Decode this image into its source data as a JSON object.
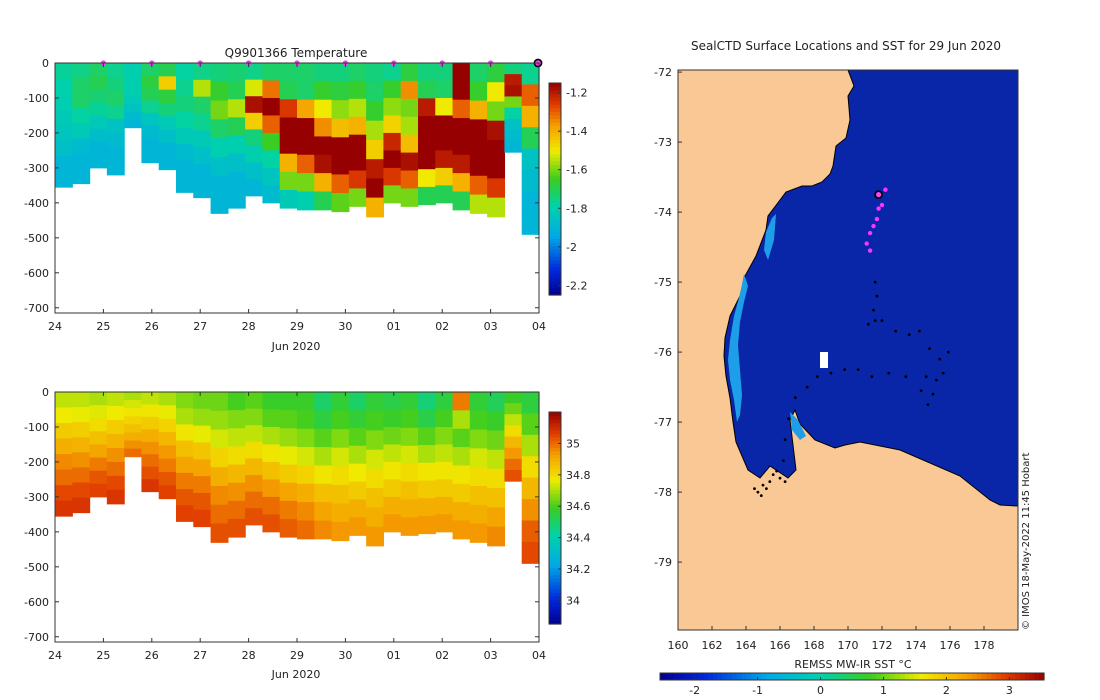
{
  "chart_data": [
    {
      "type": "heatmap",
      "title": "Q9901366  Temperature",
      "xlabel": "Jun 2020",
      "ylabel": "",
      "x_ticks": [
        "24",
        "25",
        "26",
        "27",
        "28",
        "29",
        "30",
        "01",
        "02",
        "03",
        "04"
      ],
      "y_ticks": [
        "0",
        "-100",
        "-200",
        "-300",
        "-400",
        "-500",
        "-600",
        "-700"
      ],
      "ylim": [
        -715,
        0
      ],
      "colorbar": {
        "ticks": [
          "-1.2",
          "-1.4",
          "-1.6",
          "-1.8",
          "-2",
          "-2.2"
        ],
        "range": [
          -2.25,
          -1.15
        ]
      },
      "profile_markers_day": [
        25,
        26,
        27,
        28,
        29,
        30,
        31,
        32,
        33
      ],
      "max_depth_m": [
        -355,
        -345,
        -300,
        -320,
        -185,
        -285,
        -305,
        -370,
        -385,
        -430,
        -415,
        -380,
        -400,
        -415,
        -420,
        -420,
        -425,
        -410,
        -440,
        -400,
        -410,
        -405,
        -400,
        -420,
        -430,
        -440,
        -255,
        -490
      ],
      "columns": [
        {
          "profile": [
            -1.77,
            -1.79,
            -1.8,
            -1.82,
            -1.84,
            -1.86,
            -1.9,
            -1.9
          ]
        },
        {
          "profile": [
            -1.75,
            -1.72,
            -1.72,
            -1.78,
            -1.82,
            -1.88,
            -1.9,
            -1.9
          ]
        },
        {
          "profile": [
            -1.72,
            -1.7,
            -1.73,
            -1.77,
            -1.82,
            -1.87,
            -1.9,
            -1.9
          ]
        },
        {
          "profile": [
            -1.76,
            -1.74,
            -1.72,
            -1.76,
            -1.85,
            -1.88,
            -1.9,
            -1.9
          ]
        },
        {
          "profile": [
            -1.8,
            -1.8,
            -1.8,
            -1.8,
            -1.82,
            -1.85,
            -1.88,
            -1.9
          ]
        },
        {
          "profile": [
            -1.72,
            -1.68,
            -1.7,
            -1.76,
            -1.84,
            -1.88,
            -1.9,
            -1.9
          ]
        },
        {
          "profile": [
            -1.7,
            -1.45,
            -1.68,
            -1.74,
            -1.82,
            -1.86,
            -1.9,
            -1.9
          ]
        },
        {
          "profile": [
            -1.78,
            -1.76,
            -1.74,
            -1.78,
            -1.82,
            -1.88,
            -1.9,
            -1.9
          ]
        },
        {
          "profile": [
            -1.75,
            -1.55,
            -1.72,
            -1.76,
            -1.82,
            -1.86,
            -1.9,
            -1.9
          ]
        },
        {
          "profile": [
            -1.74,
            -1.66,
            -1.6,
            -1.72,
            -1.8,
            -1.86,
            -1.9,
            -1.9
          ]
        },
        {
          "profile": [
            -1.73,
            -1.7,
            -1.55,
            -1.7,
            -1.8,
            -1.86,
            -1.9,
            -1.9
          ]
        },
        {
          "profile": [
            -1.75,
            -1.52,
            -1.18,
            -1.45,
            -1.74,
            -1.8,
            -1.86,
            -1.9
          ]
        },
        {
          "profile": [
            -1.72,
            -1.32,
            -1.15,
            -1.3,
            -1.65,
            -1.78,
            -1.84,
            -1.88
          ]
        },
        {
          "profile": [
            -1.72,
            -1.7,
            -1.25,
            -1.12,
            -1.15,
            -1.4,
            -1.6,
            -1.82
          ]
        },
        {
          "profile": [
            -1.72,
            -1.72,
            -1.38,
            -1.12,
            -1.12,
            -1.3,
            -1.6,
            -1.8
          ]
        },
        {
          "profile": [
            -1.74,
            -1.66,
            -1.5,
            -1.35,
            -1.15,
            -1.18,
            -1.4,
            -1.7
          ]
        },
        {
          "profile": [
            -1.74,
            -1.68,
            -1.58,
            -1.42,
            -1.12,
            -1.12,
            -1.3,
            -1.62
          ]
        },
        {
          "profile": [
            -1.72,
            -1.66,
            -1.55,
            -1.4,
            -1.15,
            -1.12,
            -1.25,
            -1.6
          ]
        },
        {
          "profile": [
            -1.74,
            -1.72,
            -1.66,
            -1.56,
            -1.45,
            -1.2,
            -1.15,
            -1.4
          ]
        },
        {
          "profile": [
            -1.76,
            -1.66,
            -1.58,
            -1.46,
            -1.22,
            -1.15,
            -1.25,
            -1.6
          ]
        },
        {
          "profile": [
            -1.68,
            -1.35,
            -1.6,
            -1.56,
            -1.42,
            -1.18,
            -1.3,
            -1.6
          ]
        },
        {
          "profile": [
            -1.74,
            -1.7,
            -1.2,
            -1.15,
            -1.12,
            -1.15,
            -1.5,
            -1.7
          ]
        },
        {
          "profile": [
            -1.74,
            -1.72,
            -1.5,
            -1.12,
            -1.12,
            -1.2,
            -1.45,
            -1.7
          ]
        },
        {
          "profile": [
            -1.15,
            -1.12,
            -1.3,
            -1.15,
            -1.12,
            -1.2,
            -1.4,
            -1.7
          ]
        },
        {
          "profile": [
            -1.72,
            -1.66,
            -1.4,
            -1.15,
            -1.12,
            -1.15,
            -1.3,
            -1.55
          ]
        },
        {
          "profile": [
            -1.68,
            -1.5,
            -1.6,
            -1.18,
            -1.12,
            -1.12,
            -1.25,
            -1.55
          ]
        },
        {
          "profile": [
            -1.74,
            -1.2,
            -1.18,
            -1.6,
            -1.78,
            -1.85,
            -1.88,
            -1.9
          ]
        },
        {
          "profile": [
            -1.76,
            -1.3,
            -1.4,
            -1.7,
            -1.85,
            -1.88,
            -1.9,
            -1.9
          ]
        }
      ]
    },
    {
      "type": "heatmap",
      "title": "",
      "xlabel": "Jun 2020",
      "x_ticks": [
        "24",
        "25",
        "26",
        "27",
        "28",
        "29",
        "30",
        "01",
        "02",
        "03",
        "04"
      ],
      "y_ticks": [
        "0",
        "-100",
        "-200",
        "-300",
        "-400",
        "-500",
        "-600",
        "-700"
      ],
      "ylim": [
        -715,
        0
      ],
      "colorbar": {
        "ticks": [
          "35",
          "34.8",
          "34.6",
          "34.4",
          "34.2",
          "34"
        ],
        "range": [
          33.85,
          35.2
        ]
      },
      "max_depth_m": [
        -355,
        -345,
        -300,
        -320,
        -185,
        -285,
        -305,
        -370,
        -385,
        -430,
        -415,
        -380,
        -400,
        -415,
        -420,
        -420,
        -425,
        -410,
        -440,
        -400,
        -410,
        -405,
        -400,
        -420,
        -430,
        -440,
        -255,
        -490
      ],
      "columns": [
        {
          "profile": [
            34.72,
            34.77,
            34.84,
            34.9,
            34.96,
            35.0,
            35.05,
            35.08
          ]
        },
        {
          "profile": [
            34.72,
            34.76,
            34.83,
            34.89,
            34.95,
            35.0,
            35.05,
            35.08
          ]
        },
        {
          "profile": [
            34.7,
            34.75,
            34.8,
            34.86,
            34.92,
            34.98,
            35.03,
            35.06
          ]
        },
        {
          "profile": [
            34.72,
            34.77,
            34.83,
            34.89,
            34.95,
            35.0,
            35.05,
            35.08
          ]
        },
        {
          "profile": [
            34.7,
            34.74,
            34.78,
            34.82,
            34.86,
            34.9,
            34.95,
            35.0
          ]
        },
        {
          "profile": [
            34.72,
            34.78,
            34.84,
            34.9,
            34.95,
            35.0,
            35.04,
            35.08
          ]
        },
        {
          "profile": [
            34.7,
            34.76,
            34.82,
            34.88,
            34.94,
            34.98,
            35.03,
            35.06
          ]
        },
        {
          "profile": [
            34.66,
            34.7,
            34.78,
            34.86,
            34.92,
            34.98,
            35.03,
            35.06
          ]
        },
        {
          "profile": [
            34.64,
            34.68,
            34.76,
            34.85,
            34.92,
            34.98,
            35.03,
            35.06
          ]
        },
        {
          "profile": [
            34.64,
            34.68,
            34.74,
            34.82,
            34.9,
            34.96,
            35.0,
            35.04
          ]
        },
        {
          "profile": [
            34.6,
            34.66,
            34.72,
            34.8,
            34.88,
            34.95,
            35.0,
            35.04
          ]
        },
        {
          "profile": [
            34.62,
            34.66,
            34.72,
            34.8,
            34.88,
            34.95,
            35.0,
            35.04
          ]
        },
        {
          "profile": [
            34.58,
            34.62,
            34.7,
            34.78,
            34.86,
            34.94,
            35.0,
            35.04
          ]
        },
        {
          "profile": [
            34.58,
            34.62,
            34.68,
            34.76,
            34.84,
            34.92,
            34.98,
            35.02
          ]
        },
        {
          "profile": [
            34.58,
            34.6,
            34.66,
            34.74,
            34.82,
            34.9,
            34.96,
            35.0
          ]
        },
        {
          "profile": [
            34.5,
            34.55,
            34.62,
            34.7,
            34.78,
            34.86,
            34.92,
            34.96
          ]
        },
        {
          "profile": [
            34.56,
            34.6,
            34.66,
            34.74,
            34.8,
            34.86,
            34.9,
            34.94
          ]
        },
        {
          "profile": [
            34.5,
            34.56,
            34.62,
            34.7,
            34.77,
            34.84,
            34.9,
            34.94
          ]
        },
        {
          "profile": [
            34.56,
            34.6,
            34.66,
            34.74,
            34.8,
            34.86,
            34.9,
            34.94
          ]
        },
        {
          "profile": [
            34.54,
            34.58,
            34.64,
            34.72,
            34.78,
            34.84,
            34.9,
            34.94
          ]
        },
        {
          "profile": [
            34.56,
            34.6,
            34.66,
            34.74,
            34.8,
            34.86,
            34.9,
            34.94
          ]
        },
        {
          "profile": [
            34.48,
            34.54,
            34.62,
            34.7,
            34.78,
            34.84,
            34.9,
            34.94
          ]
        },
        {
          "profile": [
            34.55,
            34.6,
            34.66,
            34.72,
            34.78,
            34.84,
            34.9,
            34.94
          ]
        },
        {
          "profile": [
            34.98,
            34.7,
            34.62,
            34.7,
            34.78,
            34.84,
            34.9,
            34.94
          ]
        },
        {
          "profile": [
            34.56,
            34.6,
            34.66,
            34.74,
            34.8,
            34.86,
            34.9,
            34.94
          ]
        },
        {
          "profile": [
            34.52,
            34.58,
            34.64,
            34.72,
            34.8,
            34.86,
            34.92,
            34.96
          ]
        },
        {
          "profile": [
            34.58,
            34.64,
            34.72,
            34.8,
            34.88,
            34.94,
            35.0,
            35.04
          ]
        },
        {
          "profile": [
            34.55,
            34.62,
            34.7,
            34.8,
            34.88,
            34.95,
            35.02,
            35.05
          ]
        }
      ]
    },
    {
      "type": "scatter",
      "title": "SealCTD Surface Locations and SST for 29 Jun 2020",
      "xlabel": "",
      "ylabel": "",
      "xlim": [
        160,
        180
      ],
      "ylim": [
        -79.97,
        -71.97
      ],
      "x_ticks": [
        "160",
        "162",
        "164",
        "166",
        "168",
        "170",
        "172",
        "174",
        "176",
        "178"
      ],
      "y_ticks": [
        "-72",
        "-73",
        "-74",
        "-75",
        "-76",
        "-77",
        "-78",
        "-79"
      ],
      "colorbar": {
        "label": "REMSS MW-IR SST °C",
        "ticks": [
          "-2",
          "-1",
          "0",
          "1",
          "2",
          "3"
        ],
        "range": [
          -2.55,
          3.55
        ]
      },
      "ocean_sst": -2.0,
      "current_position": {
        "lon": 171.8,
        "lat": -73.75
      },
      "recent_positions": [
        {
          "lon": 172.2,
          "lat": -73.68
        },
        {
          "lon": 172.0,
          "lat": -73.9
        },
        {
          "lon": 171.8,
          "lat": -73.95
        },
        {
          "lon": 171.7,
          "lat": -74.1
        },
        {
          "lon": 171.5,
          "lat": -74.2
        },
        {
          "lon": 171.3,
          "lat": -74.3
        },
        {
          "lon": 171.1,
          "lat": -74.45
        },
        {
          "lon": 171.3,
          "lat": -74.55
        }
      ],
      "track_positions": [
        {
          "lon": 171.6,
          "lat": -75.0
        },
        {
          "lon": 171.7,
          "lat": -75.2
        },
        {
          "lon": 171.5,
          "lat": -75.4
        },
        {
          "lon": 171.6,
          "lat": -75.55
        },
        {
          "lon": 171.2,
          "lat": -75.6
        },
        {
          "lon": 172.0,
          "lat": -75.55
        },
        {
          "lon": 172.8,
          "lat": -75.7
        },
        {
          "lon": 173.6,
          "lat": -75.75
        },
        {
          "lon": 174.2,
          "lat": -75.7
        },
        {
          "lon": 174.8,
          "lat": -75.95
        },
        {
          "lon": 175.4,
          "lat": -76.1
        },
        {
          "lon": 175.9,
          "lat": -76.0
        },
        {
          "lon": 175.6,
          "lat": -76.3
        },
        {
          "lon": 175.2,
          "lat": -76.4
        },
        {
          "lon": 174.6,
          "lat": -76.35
        },
        {
          "lon": 174.3,
          "lat": -76.55
        },
        {
          "lon": 174.7,
          "lat": -76.75
        },
        {
          "lon": 175.0,
          "lat": -76.6
        },
        {
          "lon": 173.4,
          "lat": -76.35
        },
        {
          "lon": 172.4,
          "lat": -76.3
        },
        {
          "lon": 171.4,
          "lat": -76.35
        },
        {
          "lon": 170.6,
          "lat": -76.25
        },
        {
          "lon": 169.8,
          "lat": -76.25
        },
        {
          "lon": 169.0,
          "lat": -76.3
        },
        {
          "lon": 168.2,
          "lat": -76.35
        },
        {
          "lon": 167.6,
          "lat": -76.5
        },
        {
          "lon": 166.9,
          "lat": -76.65
        },
        {
          "lon": 166.5,
          "lat": -76.95
        },
        {
          "lon": 166.3,
          "lat": -77.25
        },
        {
          "lon": 166.2,
          "lat": -77.55
        },
        {
          "lon": 165.8,
          "lat": -77.7
        },
        {
          "lon": 166.0,
          "lat": -77.8
        },
        {
          "lon": 165.4,
          "lat": -77.85
        },
        {
          "lon": 165.0,
          "lat": -77.9
        },
        {
          "lon": 164.7,
          "lat": -78.0
        },
        {
          "lon": 164.5,
          "lat": -77.95
        },
        {
          "lon": 165.2,
          "lat": -77.95
        },
        {
          "lon": 166.3,
          "lat": -77.85
        },
        {
          "lon": 164.9,
          "lat": -78.05
        },
        {
          "lon": 165.6,
          "lat": -77.75
        }
      ]
    }
  ],
  "credit": "© IMOS 18-May-2022 11:45 Hobart"
}
